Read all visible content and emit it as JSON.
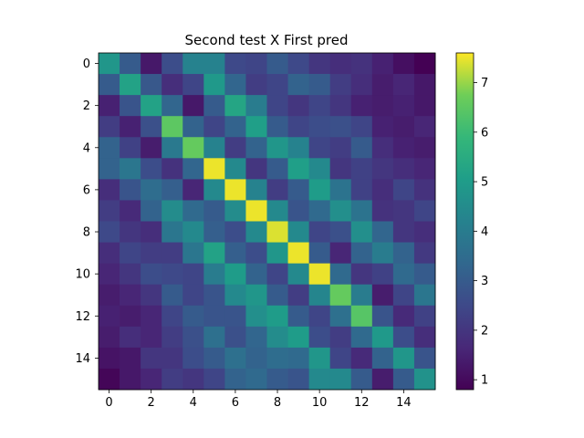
{
  "chart_data": {
    "type": "heatmap",
    "title": "Second test X First pred",
    "xlabel": "",
    "ylabel": "",
    "colormap": "viridis",
    "rows": 16,
    "cols": 16,
    "xlim": [
      -0.5,
      15.5
    ],
    "ylim": [
      15.5,
      -0.5
    ],
    "x_ticks": [
      0,
      2,
      4,
      6,
      8,
      10,
      12,
      14
    ],
    "y_ticks": [
      0,
      2,
      4,
      6,
      8,
      10,
      12,
      14
    ],
    "colorbar": {
      "range": [
        0.8,
        7.6
      ],
      "ticks": [
        1,
        2,
        3,
        4,
        5,
        6,
        7
      ]
    },
    "values": [
      [
        4.8,
        3.0,
        1.3,
        2.6,
        4.2,
        4.2,
        2.5,
        2.4,
        3.0,
        2.5,
        2.0,
        1.8,
        1.9,
        1.5,
        1.1,
        0.8
      ],
      [
        3.0,
        5.2,
        2.9,
        1.8,
        2.4,
        4.9,
        3.3,
        2.2,
        2.4,
        3.2,
        3.0,
        2.2,
        1.8,
        1.4,
        1.6,
        1.3
      ],
      [
        1.5,
        2.8,
        5.2,
        3.3,
        1.3,
        3.0,
        5.3,
        4.0,
        2.4,
        2.0,
        2.4,
        2.0,
        1.5,
        1.4,
        1.5,
        1.3
      ],
      [
        2.2,
        1.5,
        2.7,
        6.5,
        3.2,
        2.4,
        3.2,
        5.1,
        3.0,
        2.4,
        2.6,
        2.7,
        2.4,
        1.5,
        1.4,
        1.6
      ],
      [
        3.2,
        2.3,
        1.4,
        3.9,
        6.6,
        4.2,
        2.2,
        3.2,
        4.8,
        4.2,
        2.4,
        2.2,
        3.0,
        1.8,
        1.5,
        1.4
      ],
      [
        3.2,
        3.8,
        2.6,
        1.9,
        3.3,
        7.5,
        4.4,
        2.0,
        3.0,
        5.1,
        4.4,
        2.0,
        2.3,
        2.0,
        1.8,
        1.6
      ],
      [
        1.8,
        2.8,
        3.5,
        3.1,
        1.6,
        4.4,
        7.5,
        4.2,
        2.2,
        3.0,
        5.0,
        3.7,
        2.3,
        1.8,
        2.4,
        1.9
      ],
      [
        2.2,
        1.7,
        3.2,
        4.5,
        3.4,
        3.0,
        4.5,
        7.5,
        4.4,
        2.8,
        3.4,
        4.6,
        3.7,
        1.9,
        2.0,
        2.4
      ],
      [
        2.5,
        2.0,
        1.8,
        3.8,
        4.4,
        3.1,
        2.6,
        4.4,
        7.4,
        4.4,
        2.4,
        2.7,
        4.6,
        3.3,
        2.0,
        1.8
      ],
      [
        1.8,
        2.4,
        2.2,
        2.2,
        3.8,
        5.2,
        3.1,
        2.6,
        4.8,
        7.5,
        3.0,
        1.6,
        3.2,
        4.0,
        3.2,
        2.1
      ],
      [
        1.6,
        2.0,
        2.6,
        2.5,
        2.4,
        4.0,
        5.0,
        3.2,
        2.4,
        4.4,
        7.5,
        3.4,
        2.0,
        2.3,
        3.4,
        3.0
      ],
      [
        1.4,
        1.6,
        2.0,
        3.0,
        2.4,
        2.8,
        4.4,
        4.8,
        3.0,
        2.2,
        4.3,
        6.6,
        4.0,
        1.4,
        2.4,
        3.8
      ],
      [
        1.5,
        1.4,
        1.6,
        2.4,
        3.0,
        2.8,
        2.8,
        4.6,
        5.0,
        3.0,
        2.4,
        3.6,
        6.4,
        2.8,
        1.7,
        2.3
      ],
      [
        1.4,
        1.8,
        1.6,
        2.2,
        2.7,
        3.6,
        2.7,
        3.3,
        4.5,
        5.0,
        2.6,
        2.2,
        3.4,
        4.9,
        2.6,
        1.8
      ],
      [
        1.2,
        1.3,
        2.0,
        2.0,
        2.6,
        3.0,
        3.6,
        3.2,
        3.5,
        3.4,
        4.8,
        2.4,
        1.7,
        3.2,
        4.8,
        2.8
      ],
      [
        0.9,
        1.3,
        1.6,
        2.2,
        2.0,
        2.4,
        3.2,
        3.4,
        3.0,
        2.8,
        4.4,
        4.4,
        3.0,
        1.4,
        3.0,
        4.7
      ]
    ]
  }
}
